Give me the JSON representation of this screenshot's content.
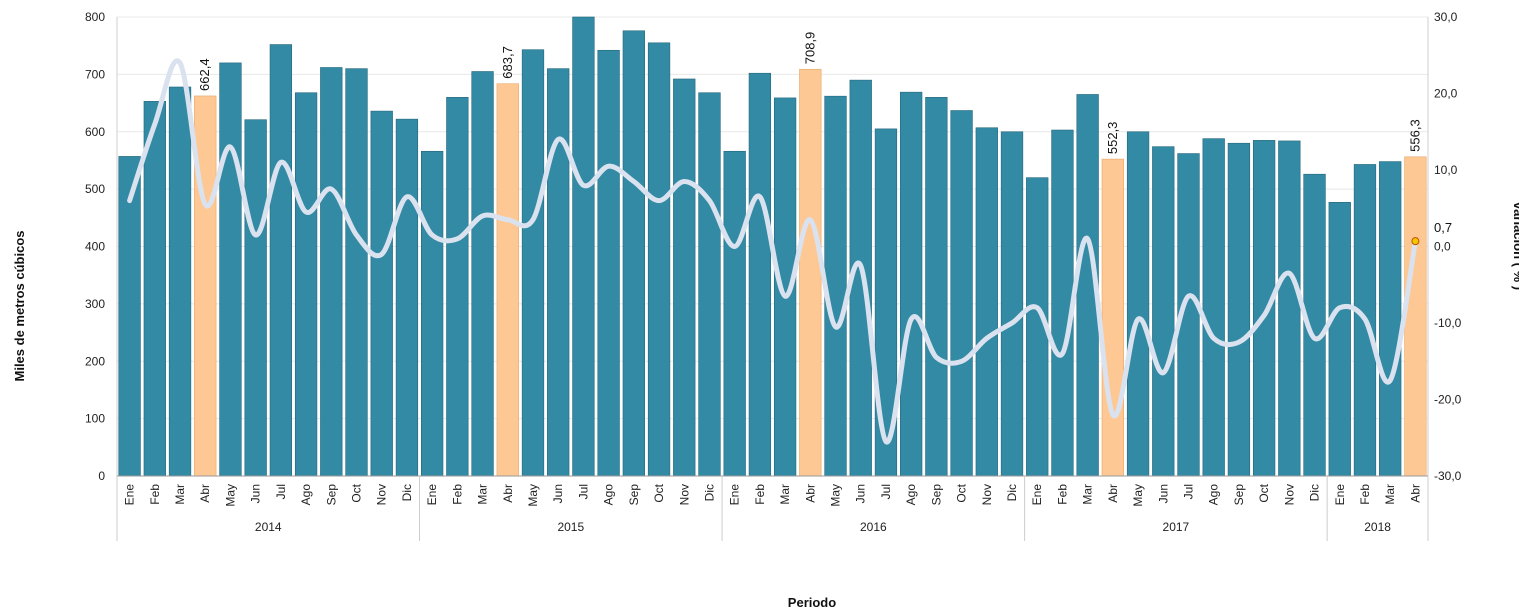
{
  "chart_data": {
    "type": "bar",
    "xlabel": "Periodo",
    "ylabel": "Miles de metros cúbicos",
    "y2label": "variación ( % )",
    "ylim": [
      0,
      800
    ],
    "y2lim": [
      -30,
      30
    ],
    "yticks": [
      "0",
      "100",
      "200",
      "300",
      "400",
      "500",
      "600",
      "700",
      "800"
    ],
    "y2ticks": [
      "-30,0",
      "-20,0",
      "-10,0",
      "0,0",
      "10,0",
      "20,0",
      "30,0"
    ],
    "years": [
      {
        "label": "2014",
        "months": 12
      },
      {
        "label": "2015",
        "months": 12
      },
      {
        "label": "2016",
        "months": 12
      },
      {
        "label": "2017",
        "months": 12
      },
      {
        "label": "2018",
        "months": 4
      }
    ],
    "categories": [
      "Ene",
      "Feb",
      "Mar",
      "Abr",
      "May",
      "Jun",
      "Jul",
      "Ago",
      "Sep",
      "Oct",
      "Nov",
      "Dic",
      "Ene",
      "Feb",
      "Mar",
      "Abr",
      "May",
      "Jun",
      "Jul",
      "Ago",
      "Sep",
      "Oct",
      "Nov",
      "Dic",
      "Ene",
      "Feb",
      "Mar",
      "Abr",
      "May",
      "Jun",
      "Jul",
      "Ago",
      "Sep",
      "Oct",
      "Nov",
      "Dic",
      "Ene",
      "Feb",
      "Mar",
      "Abr",
      "May",
      "Jun",
      "Jul",
      "Ago",
      "Sep",
      "Oct",
      "Nov",
      "Dic",
      "Ene",
      "Feb",
      "Mar",
      "Abr"
    ],
    "series": [
      {
        "type": "bar",
        "values": [
          557,
          653,
          678,
          662.4,
          720,
          621,
          752,
          668,
          712,
          710,
          636,
          622,
          566,
          660,
          705,
          683.7,
          743,
          710,
          800,
          742,
          776,
          755,
          692,
          668,
          566,
          702,
          659,
          708.9,
          662,
          690,
          605,
          669,
          660,
          637,
          607,
          600,
          520,
          603,
          665,
          552.3,
          600,
          574,
          562,
          588,
          580,
          585,
          584,
          526,
          477,
          543,
          548,
          556.3
        ],
        "highlighted": [
          3,
          15,
          27,
          39,
          51
        ],
        "labels": [
          "662,4",
          "683,7",
          "708,9",
          "552,3",
          "556,3"
        ]
      },
      {
        "type": "line",
        "axis": "right",
        "values": [
          6,
          16,
          24,
          5.5,
          13,
          1.5,
          11,
          4.5,
          7.5,
          1.5,
          -1,
          6.5,
          1.5,
          1,
          4,
          3.5,
          3.5,
          14,
          8,
          10.5,
          8.5,
          6,
          8.5,
          6,
          0,
          6.5,
          -6.5,
          3.5,
          -10.5,
          -2.5,
          -25.5,
          -9.5,
          -14.5,
          -15,
          -12,
          -10,
          -8,
          -14,
          1,
          -22,
          -9.5,
          -16.5,
          -6.5,
          -12,
          -12.5,
          -9,
          -3.5,
          -12,
          -8,
          -9.5,
          -17.5,
          0.7
        ],
        "end_label": "0,7"
      }
    ],
    "colors": {
      "bar": "#338aa4",
      "bar_highlight": "#fdc894",
      "line": "#d9e2ee",
      "end_marker": "#f3c700",
      "grid": "#e8e8e8"
    },
    "grid": true
  }
}
